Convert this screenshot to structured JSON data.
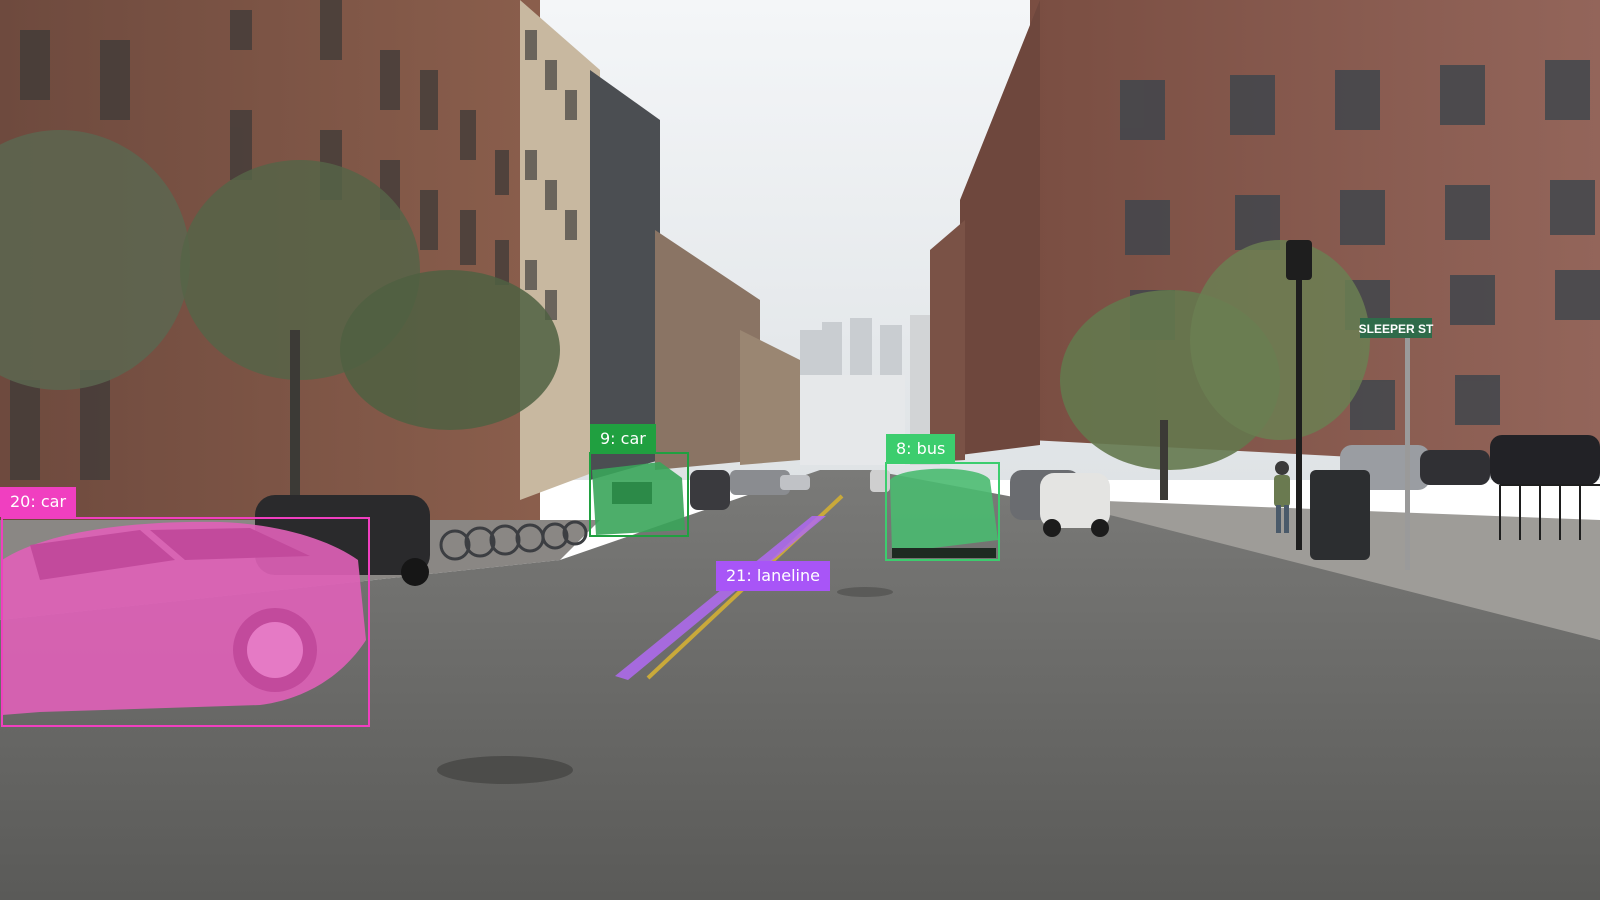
{
  "annotations": [
    {
      "id": "20",
      "class": "car",
      "label": "20: car",
      "color": "#f03fc0"
    },
    {
      "id": "9",
      "class": "car",
      "label": "9: car",
      "color": "#20a040"
    },
    {
      "id": "8",
      "class": "bus",
      "label": "8: bus",
      "color": "#3ccd6e"
    },
    {
      "id": "21",
      "class": "laneline",
      "label": "21: laneline",
      "color": "#a855f7"
    }
  ],
  "street_sign": {
    "text": "SLEEPER ST"
  }
}
